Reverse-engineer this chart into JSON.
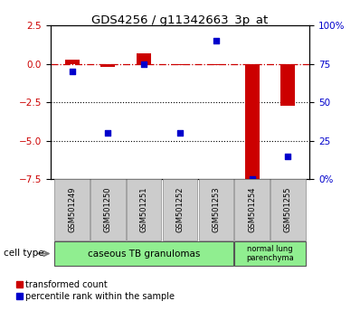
{
  "title": "GDS4256 / g11342663_3p_at",
  "samples": [
    "GSM501249",
    "GSM501250",
    "GSM501251",
    "GSM501252",
    "GSM501253",
    "GSM501254",
    "GSM501255"
  ],
  "red_values": [
    0.3,
    -0.2,
    0.7,
    -0.1,
    -0.1,
    -7.5,
    -2.7
  ],
  "blue_values": [
    70,
    30,
    75,
    30,
    90,
    0,
    15
  ],
  "left_ylim": [
    -7.5,
    2.5
  ],
  "right_ylim": [
    0,
    100
  ],
  "left_yticks": [
    2.5,
    0,
    -2.5,
    -5,
    -7.5
  ],
  "right_yticks": [
    0,
    25,
    50,
    75,
    100
  ],
  "right_yticklabels": [
    "0%",
    "25",
    "50",
    "75",
    "100%"
  ],
  "dotted_lines": [
    -2.5,
    -5
  ],
  "red_color": "#CC0000",
  "blue_color": "#0000CC",
  "bar_width": 0.4,
  "legend_red": "transformed count",
  "legend_blue": "percentile rank within the sample",
  "plot_bg": "#ffffff",
  "gray_box_color": "#cccccc",
  "green_color": "#90EE90"
}
